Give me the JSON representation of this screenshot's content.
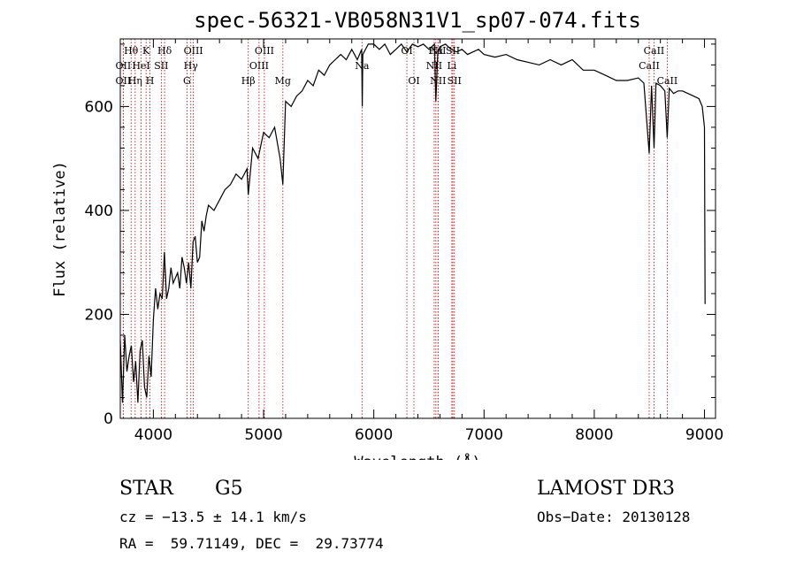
{
  "chart_data": {
    "type": "line",
    "title": "spec-56321-VB058N31V1_sp07-074.fits",
    "xlabel": "Wavelength (Å)",
    "ylabel": "Flux (relative)",
    "xlim": [
      3700,
      9100
    ],
    "ylim": [
      0,
      730
    ],
    "x_ticks": [
      4000,
      5000,
      6000,
      7000,
      8000,
      9000
    ],
    "y_ticks": [
      0,
      200,
      400,
      600
    ],
    "grid": false,
    "series": [
      {
        "x": [
          3700,
          3720,
          3740,
          3760,
          3780,
          3800,
          3820,
          3840,
          3860,
          3880,
          3900,
          3920,
          3940,
          3960,
          3980,
          4000,
          4020,
          4040,
          4060,
          4080,
          4100,
          4120,
          4140,
          4160,
          4180,
          4200,
          4220,
          4240,
          4260,
          4280,
          4300,
          4320,
          4340,
          4360,
          4380,
          4400,
          4420,
          4440,
          4460,
          4480,
          4500,
          4550,
          4600,
          4650,
          4700,
          4750,
          4800,
          4850,
          4861,
          4900,
          4950,
          5000,
          5050,
          5100,
          5150,
          5175,
          5200,
          5250,
          5300,
          5350,
          5400,
          5450,
          5500,
          5550,
          5600,
          5650,
          5700,
          5750,
          5800,
          5850,
          5890,
          5895,
          5900,
          5950,
          6000,
          6050,
          6100,
          6150,
          6200,
          6250,
          6300,
          6350,
          6400,
          6450,
          6500,
          6550,
          6563,
          6580,
          6600,
          6650,
          6700,
          6750,
          6800,
          6850,
          6900,
          6950,
          7000,
          7100,
          7200,
          7300,
          7400,
          7500,
          7600,
          7700,
          7800,
          7900,
          8000,
          8100,
          8200,
          8300,
          8400,
          8450,
          8498,
          8520,
          8542,
          8560,
          8600,
          8640,
          8662,
          8680,
          8720,
          8760,
          8800,
          8850,
          8900,
          8950,
          8980,
          9000,
          9005
        ],
        "values": [
          150,
          30,
          160,
          90,
          120,
          140,
          70,
          110,
          30,
          130,
          150,
          60,
          40,
          120,
          80,
          190,
          250,
          210,
          240,
          230,
          320,
          230,
          250,
          290,
          260,
          270,
          280,
          250,
          310,
          290,
          260,
          300,
          250,
          340,
          350,
          300,
          310,
          380,
          360,
          390,
          410,
          400,
          420,
          440,
          450,
          470,
          460,
          480,
          430,
          520,
          500,
          550,
          540,
          560,
          500,
          450,
          610,
          600,
          620,
          630,
          650,
          640,
          670,
          660,
          680,
          690,
          700,
          690,
          710,
          690,
          710,
          600,
          700,
          720,
          720,
          710,
          720,
          700,
          710,
          720,
          705,
          720,
          715,
          720,
          710,
          720,
          610,
          700,
          715,
          720,
          710,
          705,
          710,
          700,
          705,
          710,
          700,
          695,
          700,
          690,
          685,
          680,
          690,
          680,
          690,
          670,
          670,
          660,
          650,
          650,
          655,
          645,
          510,
          640,
          520,
          645,
          640,
          630,
          540,
          635,
          625,
          630,
          630,
          625,
          620,
          615,
          600,
          560,
          220
        ]
      }
    ],
    "spectral_lines": [
      {
        "name": "OII",
        "wavelength": 3727,
        "row": 3
      },
      {
        "name": "Hθ",
        "wavelength": 3798,
        "row": 1
      },
      {
        "name": "OII",
        "wavelength": 3727,
        "row": 2
      },
      {
        "name": "Hη",
        "wavelength": 3835,
        "row": 3
      },
      {
        "name": "HeI",
        "wavelength": 3889,
        "row": 2
      },
      {
        "name": "K",
        "wavelength": 3934,
        "row": 1
      },
      {
        "name": "H",
        "wavelength": 3969,
        "row": 3
      },
      {
        "name": "SII",
        "wavelength": 4072,
        "row": 2
      },
      {
        "name": "Hδ",
        "wavelength": 4102,
        "row": 1
      },
      {
        "name": "OIII",
        "wavelength": 4363,
        "row": 1
      },
      {
        "name": "Hγ",
        "wavelength": 4340,
        "row": 2
      },
      {
        "name": "G",
        "wavelength": 4305,
        "row": 3
      },
      {
        "name": "Hβ",
        "wavelength": 4861,
        "row": 3
      },
      {
        "name": "OIII",
        "wavelength": 5007,
        "row": 1
      },
      {
        "name": "OIII",
        "wavelength": 4959,
        "row": 2
      },
      {
        "name": "Mg",
        "wavelength": 5175,
        "row": 3
      },
      {
        "name": "Na",
        "wavelength": 5893,
        "row": 2
      },
      {
        "name": "OI",
        "wavelength": 6300,
        "row": 1
      },
      {
        "name": "OI",
        "wavelength": 6364,
        "row": 3
      },
      {
        "name": "Hα",
        "wavelength": 6563,
        "row": 1
      },
      {
        "name": "NII",
        "wavelength": 6583,
        "row": 1
      },
      {
        "name": "SII",
        "wavelength": 6717,
        "row": 1
      },
      {
        "name": "NII",
        "wavelength": 6548,
        "row": 2
      },
      {
        "name": "Li",
        "wavelength": 6708,
        "row": 2
      },
      {
        "name": "NII",
        "wavelength": 6583,
        "row": 3
      },
      {
        "name": "SII",
        "wavelength": 6731,
        "row": 3
      },
      {
        "name": "CaII",
        "wavelength": 8542,
        "row": 1
      },
      {
        "name": "CaII",
        "wavelength": 8498,
        "row": 2
      },
      {
        "name": "CaII",
        "wavelength": 8662,
        "row": 3
      }
    ]
  },
  "info": {
    "object_class": "STAR",
    "subclass": "G5",
    "survey": "LAMOST DR3",
    "redshift": "cz = −13.5 ± 14.1 km/s",
    "obs_date": "Obs−Date: 20130128",
    "coordinates": "RA =  59.71149, DEC =  29.73774"
  }
}
